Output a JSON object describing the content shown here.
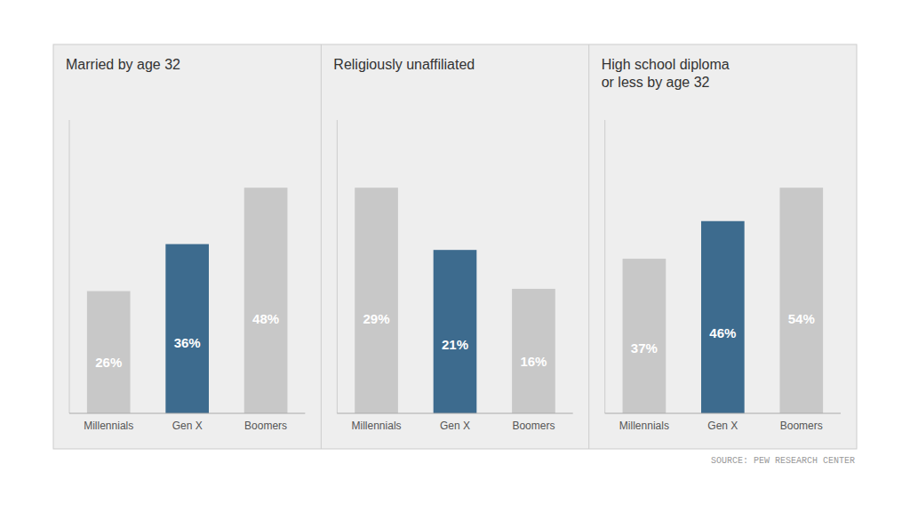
{
  "chart_data": [
    {
      "type": "bar",
      "title": "Married by age 32",
      "categories": [
        "Millennials",
        "Gen X",
        "Boomers"
      ],
      "values": [
        26,
        36,
        48
      ],
      "value_labels": [
        "26%",
        "36%",
        "48%"
      ],
      "colors": [
        "#c8c8c8",
        "#3d6b8e",
        "#c8c8c8"
      ],
      "ylim": [
        0,
        62.4
      ],
      "grid": false,
      "data_labels": true,
      "tick_labels": "x"
    },
    {
      "type": "bar",
      "title": "Religiously unaffiliated",
      "categories": [
        "Millennials",
        "Gen X",
        "Boomers"
      ],
      "values": [
        29,
        21,
        16
      ],
      "value_labels": [
        "29%",
        "21%",
        "16%"
      ],
      "colors": [
        "#c8c8c8",
        "#3d6b8e",
        "#c8c8c8"
      ],
      "ylim": [
        0,
        37.7
      ],
      "grid": false,
      "data_labels": true,
      "tick_labels": "x"
    },
    {
      "type": "bar",
      "title": "High school diploma\nor less by age 32",
      "categories": [
        "Millennials",
        "Gen X",
        "Boomers"
      ],
      "values": [
        37,
        46,
        54
      ],
      "value_labels": [
        "37%",
        "46%",
        "54%"
      ],
      "colors": [
        "#c8c8c8",
        "#3d6b8e",
        "#c8c8c8"
      ],
      "ylim": [
        0,
        70.2
      ],
      "grid": false,
      "data_labels": true,
      "tick_labels": "x",
      "annotations": [
        "SOURCE: PEW RESEARCH CENTER"
      ]
    }
  ]
}
